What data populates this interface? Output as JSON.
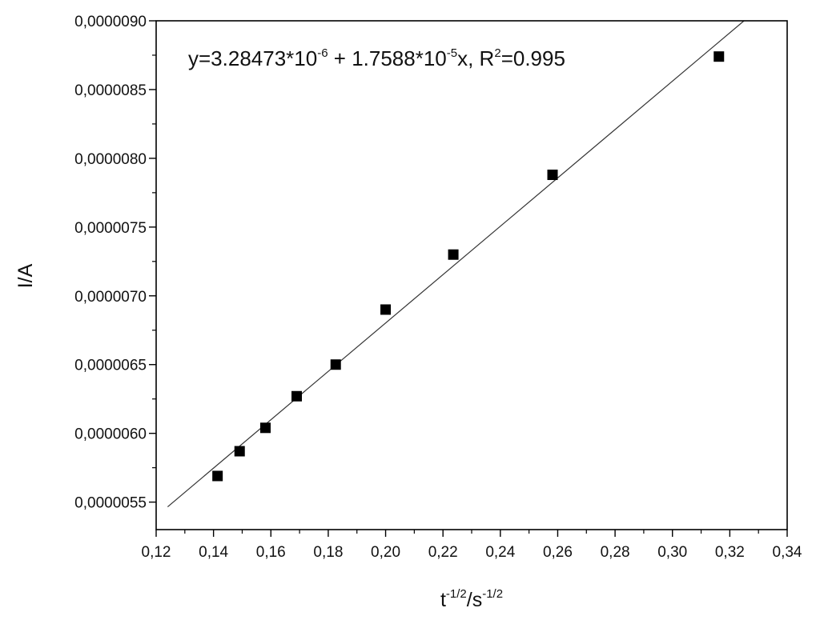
{
  "chart_data": {
    "type": "scatter",
    "title": "",
    "xlabel_base": "t",
    "xlabel_exp1": "-1/2",
    "xlabel_mid": "/s",
    "xlabel_exp2": "-1/2",
    "ylabel": "I/A",
    "xlim": [
      0.12,
      0.34
    ],
    "ylim": [
      5.3e-06,
      9e-06
    ],
    "x_ticks": [
      0.12,
      0.14,
      0.16,
      0.18,
      0.2,
      0.22,
      0.24,
      0.26,
      0.28,
      0.3,
      0.32,
      0.34
    ],
    "x_tick_labels": [
      "0,12",
      "0,14",
      "0,16",
      "0,18",
      "0,20",
      "0,22",
      "0,24",
      "0,26",
      "0,28",
      "0,30",
      "0,32",
      "0,34"
    ],
    "y_ticks": [
      5.5e-06,
      6e-06,
      6.5e-06,
      7e-06,
      7.5e-06,
      8e-06,
      8.5e-06,
      9e-06
    ],
    "y_tick_labels": [
      "0,0000055",
      "0,0000060",
      "0,0000065",
      "0,0000070",
      "0,0000075",
      "0,0000080",
      "0,0000085",
      "0,0000090"
    ],
    "series": [
      {
        "x": [
          0.1414,
          0.1491,
          0.1581,
          0.169,
          0.1826,
          0.2,
          0.2236,
          0.2582,
          0.3162
        ],
        "y": [
          5.69e-06,
          5.87e-06,
          6.04e-06,
          6.27e-06,
          6.5e-06,
          6.9e-06,
          7.3e-06,
          7.88e-06,
          8.74e-06
        ],
        "marker": "square",
        "color": "#000000"
      }
    ],
    "fit": {
      "intercept": 3.28473e-06,
      "slope": 1.7588e-05,
      "x_range": [
        0.124,
        0.325
      ],
      "color": "#333333"
    },
    "annotation": {
      "p1": "y=3.28473*10",
      "e1": "-6",
      "p2": " + 1.7588*10",
      "e2": "-5",
      "p3": "x, R",
      "e3": "2",
      "p4": "=0.995"
    },
    "grid": false,
    "legend": "none"
  }
}
